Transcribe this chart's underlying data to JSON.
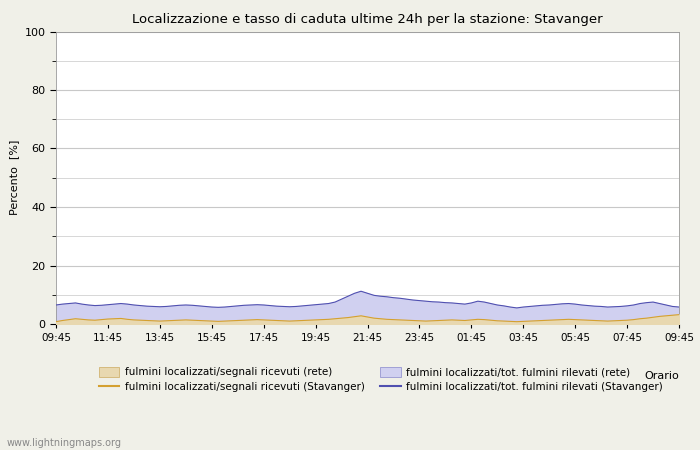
{
  "title": "Localizzazione e tasso di caduta ultime 24h per la stazione: Stavanger",
  "xlabel": "Orario",
  "ylabel": "Percento  [%]",
  "ylim": [
    0,
    100
  ],
  "yticks": [
    0,
    20,
    40,
    60,
    80,
    100
  ],
  "yticks_minor": [
    10,
    30,
    50,
    70,
    90
  ],
  "x_labels": [
    "09:45",
    "11:45",
    "13:45",
    "15:45",
    "17:45",
    "19:45",
    "21:45",
    "23:45",
    "01:45",
    "03:45",
    "05:45",
    "07:45",
    "09:45"
  ],
  "background_color": "#f0f0e8",
  "plot_bg_color": "#ffffff",
  "grid_color": "#c8c8c8",
  "fill_rete_color": "#e8d8b0",
  "fill_stavanger_color": "#d0d0f0",
  "line_rete_color": "#d4a030",
  "line_stavanger_color": "#5050b0",
  "watermark": "www.lightningmaps.org",
  "legend_labels": [
    "fulmini localizzati/segnali ricevuti (rete)",
    "fulmini localizzati/segnali ricevuti (Stavanger)",
    "fulmini localizzati/tot. fulmini rilevati (rete)",
    "fulmini localizzati/tot. fulmini rilevati (Stavanger)"
  ],
  "n_points": 97,
  "rete_fill_data": [
    0.8,
    1.2,
    1.5,
    1.8,
    1.6,
    1.4,
    1.3,
    1.5,
    1.7,
    1.8,
    1.9,
    1.6,
    1.4,
    1.3,
    1.2,
    1.1,
    1.0,
    1.1,
    1.2,
    1.3,
    1.4,
    1.3,
    1.2,
    1.1,
    1.0,
    0.9,
    1.0,
    1.1,
    1.2,
    1.3,
    1.4,
    1.5,
    1.4,
    1.3,
    1.2,
    1.1,
    1.0,
    1.1,
    1.2,
    1.3,
    1.4,
    1.5,
    1.6,
    1.8,
    2.0,
    2.2,
    2.5,
    2.8,
    2.4,
    2.0,
    1.8,
    1.6,
    1.5,
    1.4,
    1.3,
    1.2,
    1.1,
    1.0,
    1.1,
    1.2,
    1.3,
    1.4,
    1.3,
    1.2,
    1.4,
    1.6,
    1.5,
    1.3,
    1.1,
    1.0,
    0.9,
    0.8,
    0.9,
    1.0,
    1.1,
    1.2,
    1.3,
    1.4,
    1.5,
    1.6,
    1.5,
    1.4,
    1.3,
    1.2,
    1.1,
    1.0,
    1.1,
    1.2,
    1.3,
    1.5,
    1.8,
    2.0,
    2.3,
    2.6,
    2.8,
    3.0,
    3.2
  ],
  "stavanger_fill_data": [
    6.5,
    6.8,
    7.0,
    7.2,
    6.8,
    6.5,
    6.3,
    6.4,
    6.6,
    6.8,
    7.0,
    6.8,
    6.5,
    6.3,
    6.1,
    6.0,
    5.9,
    6.0,
    6.2,
    6.4,
    6.5,
    6.4,
    6.2,
    6.0,
    5.8,
    5.7,
    5.8,
    6.0,
    6.2,
    6.4,
    6.5,
    6.6,
    6.5,
    6.3,
    6.1,
    6.0,
    5.9,
    6.0,
    6.2,
    6.4,
    6.6,
    6.8,
    7.0,
    7.5,
    8.5,
    9.5,
    10.5,
    11.2,
    10.5,
    9.8,
    9.5,
    9.3,
    9.0,
    8.8,
    8.5,
    8.2,
    8.0,
    7.8,
    7.6,
    7.5,
    7.3,
    7.2,
    7.0,
    6.8,
    7.2,
    7.8,
    7.5,
    7.0,
    6.5,
    6.2,
    5.8,
    5.5,
    5.8,
    6.0,
    6.2,
    6.4,
    6.5,
    6.7,
    6.9,
    7.0,
    6.8,
    6.5,
    6.3,
    6.1,
    6.0,
    5.8,
    5.9,
    6.0,
    6.2,
    6.5,
    7.0,
    7.3,
    7.5,
    7.0,
    6.5,
    6.0,
    5.8
  ]
}
